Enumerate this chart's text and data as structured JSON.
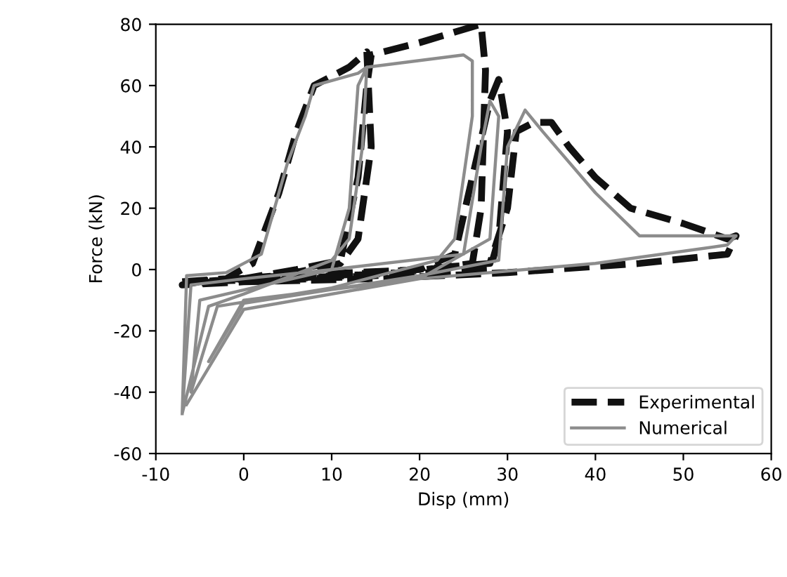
{
  "chart_data": {
    "type": "line",
    "xlabel": "Disp (mm)",
    "ylabel": "Force (kN)",
    "xlim": [
      -10,
      60
    ],
    "ylim": [
      -60,
      80
    ],
    "xticks": [
      -10,
      0,
      10,
      20,
      30,
      40,
      50,
      60
    ],
    "yticks": [
      -60,
      -40,
      -20,
      0,
      20,
      40,
      60,
      80
    ],
    "grid": false,
    "legend": "bottom right",
    "marker": "none",
    "series": [
      {
        "name": "Experimental",
        "color": "#111111",
        "line_style": "dashed",
        "x": [
          -7,
          -2,
          1,
          4,
          6,
          8,
          12,
          14,
          14.5,
          13,
          11,
          4,
          -5,
          -7,
          0,
          6,
          11,
          13,
          14,
          14.5,
          20,
          27,
          27.5,
          27,
          26,
          18,
          5,
          -6,
          5,
          20,
          24,
          26,
          28,
          29,
          30,
          29,
          28,
          15,
          0,
          15,
          28,
          30,
          31,
          33,
          35,
          37,
          40,
          44,
          50,
          55,
          56,
          55,
          45,
          30,
          15,
          0,
          -7
        ],
        "values": [
          -4,
          -3,
          2,
          25,
          45,
          60,
          66,
          71,
          40,
          10,
          2,
          -2,
          -4,
          -5,
          -3,
          0,
          3,
          30,
          60,
          70,
          74,
          80,
          65,
          20,
          2,
          -1,
          -3,
          -4,
          -2,
          0,
          5,
          30,
          55,
          62,
          45,
          10,
          0,
          -2,
          -4,
          -1,
          2,
          20,
          45,
          48,
          48,
          40,
          30,
          20,
          15,
          10,
          11,
          5,
          2,
          -1,
          -3,
          -4,
          -5
        ]
      },
      {
        "name": "Numerical",
        "color": "#8c8c8c",
        "line_style": "solid",
        "x": [
          -7,
          -6.5,
          -2,
          2,
          5,
          7,
          8,
          13,
          14,
          13.5,
          12,
          10,
          0,
          -4,
          -7,
          -6,
          0,
          10,
          12,
          13,
          14,
          25,
          26,
          26,
          24,
          22,
          10,
          -3,
          -6,
          -5,
          10,
          25,
          27,
          28,
          29,
          28,
          20,
          0,
          -4,
          0,
          20,
          29,
          30,
          32,
          34,
          40,
          45,
          56,
          55,
          40,
          20,
          0,
          -6.5
        ],
        "values": [
          -47,
          -2,
          -1,
          5,
          35,
          50,
          60,
          64,
          66,
          40,
          10,
          3,
          -8,
          -12,
          -47,
          -5,
          -3,
          0,
          20,
          60,
          66,
          70,
          68,
          50,
          10,
          3,
          -6,
          -12,
          -40,
          -10,
          0,
          5,
          40,
          55,
          50,
          10,
          -3,
          -10,
          -30,
          -11,
          -2,
          3,
          40,
          52,
          45,
          25,
          11,
          11,
          8,
          2,
          -3,
          -13,
          -44
        ]
      }
    ]
  }
}
